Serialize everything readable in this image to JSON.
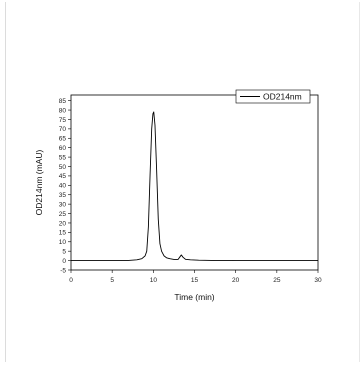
{
  "chart_data": {
    "type": "line",
    "xlabel": "Time (min)",
    "ylabel": "OD214nm (mAU)",
    "xlim": [
      0,
      30
    ],
    "ylim": [
      -5,
      88
    ],
    "xticks": [
      0,
      5,
      10,
      15,
      20,
      25,
      30
    ],
    "yticks": [
      -5,
      0,
      5,
      10,
      15,
      20,
      25,
      30,
      35,
      40,
      45,
      50,
      55,
      60,
      65,
      70,
      75,
      80,
      85
    ],
    "grid": false,
    "legend_position": "top-right",
    "series": [
      {
        "name": "OD214nm",
        "color": "#000000",
        "x": [
          0,
          2,
          4,
          6,
          7,
          8,
          8.6,
          9.0,
          9.2,
          9.4,
          9.6,
          9.8,
          9.95,
          10.05,
          10.2,
          10.4,
          10.6,
          10.8,
          11.0,
          11.3,
          11.6,
          12.0,
          12.5,
          13.0,
          13.2,
          13.4,
          13.6,
          13.9,
          14.5,
          15.5,
          17,
          20,
          25,
          30
        ],
        "y": [
          0,
          0,
          0,
          0,
          0.1,
          0.4,
          1.0,
          2.5,
          5,
          18,
          45,
          70,
          78,
          79,
          72,
          48,
          22,
          9,
          5,
          2.5,
          1.5,
          1.0,
          0.6,
          0.6,
          1.8,
          3.0,
          1.8,
          0.7,
          0.4,
          0.2,
          0.1,
          0,
          0,
          0
        ]
      }
    ]
  }
}
